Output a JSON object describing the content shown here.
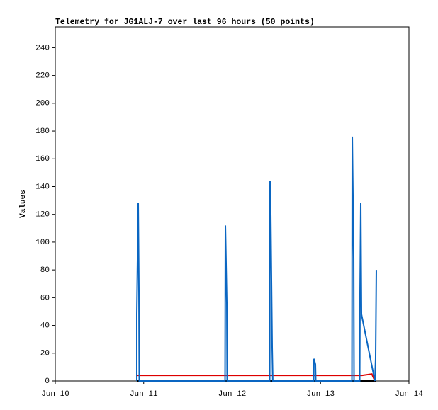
{
  "chart_data": {
    "type": "line",
    "title": "Telemetry for JG1ALJ-7 over last 96 hours (50 points)",
    "y_label": "Values",
    "xlim": [
      10,
      14
    ],
    "xticks": [
      {
        "value": 10,
        "label": "Jun 10"
      },
      {
        "value": 11,
        "label": "Jun 11"
      },
      {
        "value": 12,
        "label": "Jun 12"
      },
      {
        "value": 13,
        "label": "Jun 13"
      },
      {
        "value": 14,
        "label": "Jun 14"
      }
    ],
    "ylim": [
      0,
      255
    ],
    "yticks": [
      0,
      20,
      40,
      60,
      80,
      100,
      120,
      140,
      160,
      180,
      200,
      220,
      240
    ],
    "grid": false,
    "series": [
      {
        "color": "#000000",
        "x": [
          10.922,
          13.631
        ],
        "values": [
          0,
          0
        ]
      },
      {
        "color": "#dd0000",
        "x": [
          10.922,
          13.47,
          13.58,
          13.615
        ],
        "values": [
          4,
          4,
          5,
          0
        ]
      },
      {
        "color": "#0a66c2",
        "x": [
          10.922,
          10.922,
          10.938,
          10.946,
          10.95,
          11.92,
          11.924,
          11.94,
          11.944,
          12.425,
          12.429,
          12.437,
          12.445,
          12.453,
          12.46,
          12.922,
          12.926,
          12.942,
          12.946,
          13.355,
          13.359,
          13.375,
          13.379,
          13.443,
          13.447,
          13.455,
          13.463,
          13.615,
          13.623,
          13.631
        ],
        "values": [
          0,
          48,
          128,
          64,
          0,
          0,
          112,
          56,
          0,
          0,
          144,
          120,
          72,
          24,
          0,
          0,
          16,
          12,
          0,
          0,
          176,
          88,
          0,
          0,
          64,
          128,
          48,
          0,
          16,
          80
        ]
      }
    ]
  }
}
